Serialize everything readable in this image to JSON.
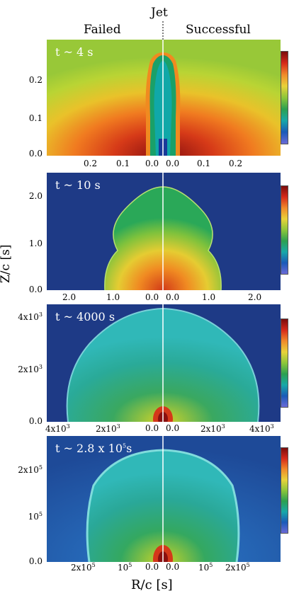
{
  "header": {
    "left": "Failed",
    "center": "Jet",
    "right": "Successful"
  },
  "axes": {
    "ylabel": "Z/c [s]",
    "xlabel": "R/c [s]"
  },
  "panels": [
    {
      "time": "t ~ 4 s",
      "yticks": [
        "0.2",
        "0.1",
        "0.0"
      ],
      "xticks": [
        "0.2",
        "0.1",
        "0.0",
        "0.0",
        "0.1",
        "0.2"
      ]
    },
    {
      "time": "t ~ 10 s",
      "yticks": [
        "2.0",
        "1.0",
        "0.0"
      ],
      "xticks": [
        "2.0",
        "1.0",
        "0.0",
        "0.0",
        "1.0",
        "2.0"
      ]
    },
    {
      "time": "t ~ 4000 s",
      "yticks": [
        "4x10",
        "2x10",
        "0.0"
      ],
      "ysup": [
        "3",
        "3",
        ""
      ],
      "xticks": [
        "4x10",
        "2x10",
        "0.0",
        "0.0",
        "2x10",
        "4x10"
      ],
      "xsup": [
        "3",
        "3",
        "",
        "",
        "3",
        "3"
      ]
    },
    {
      "time": "t ~ 2.8 x 10",
      "time_sup": "5",
      "time_suffix": "s",
      "yticks": [
        "2x10",
        "10",
        "0.0"
      ],
      "ysup": [
        "5",
        "5",
        ""
      ],
      "xticks": [
        "2x10",
        "10",
        "0.0",
        "0.0",
        "10",
        "2x10"
      ],
      "xsup": [
        "5",
        "5",
        "",
        "",
        "5",
        "5"
      ]
    }
  ]
}
